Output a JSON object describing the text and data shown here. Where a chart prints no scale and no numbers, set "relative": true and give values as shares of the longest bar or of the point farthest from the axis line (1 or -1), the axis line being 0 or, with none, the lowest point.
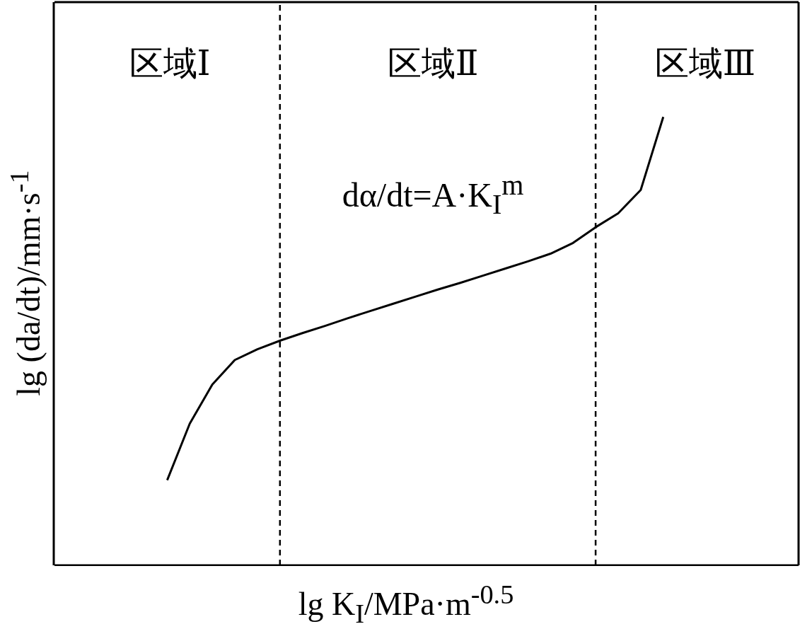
{
  "chart_data": {
    "type": "line",
    "relative": true,
    "xlabel": "lg K$_{I}$/MPa·m$^{-0.5}$",
    "ylabel": "lg (da/dt)/mm·s$^{-1}$",
    "categories": [
      null,
      null,
      null,
      null,
      null,
      null,
      null,
      null,
      null,
      null,
      null,
      null,
      null,
      null,
      null,
      null,
      null,
      null,
      null,
      null,
      null,
      null,
      null,
      null,
      null,
      null,
      null,
      null,
      null,
      null,
      null,
      null,
      null,
      null
    ],
    "series": [
      {
        "color": "#000000",
        "values": [
          null,
          null,
          null,
          null,
          null,
          0.19,
          0.316,
          0.403,
          0.458,
          0.482,
          0.501,
          0.518,
          0.534,
          0.551,
          0.567,
          0.583,
          0.599,
          0.615,
          0.63,
          0.646,
          0.662,
          0.678,
          0.695,
          0.719,
          0.754,
          0.785,
          0.837,
          1.0,
          null,
          null,
          null,
          null,
          null,
          null
        ]
      }
    ],
    "annotations": [
      "区域Ⅰ",
      "区域Ⅱ",
      "区域Ⅲ",
      "dα/dt=A·K$_{I}$$^{m}$"
    ]
  }
}
